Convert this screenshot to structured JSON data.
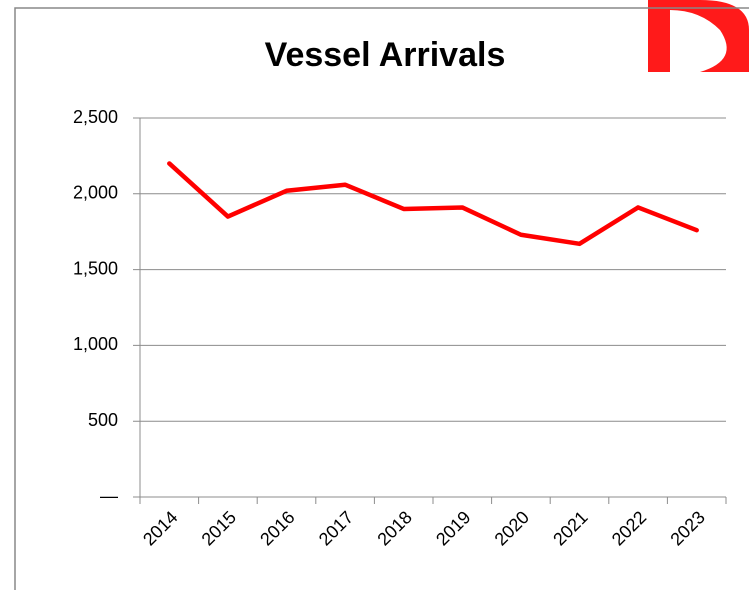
{
  "chart_data": {
    "type": "line",
    "title": "Vessel Arrivals",
    "categories": [
      "2014",
      "2015",
      "2016",
      "2017",
      "2018",
      "2019",
      "2020",
      "2021",
      "2022",
      "2023"
    ],
    "series": [
      {
        "name": "Vessel Arrivals",
        "color": "#ff0000",
        "values": [
          2200,
          1850,
          2020,
          2060,
          1900,
          1910,
          1730,
          1670,
          1910,
          1760
        ]
      }
    ],
    "ylim": [
      0,
      2500
    ],
    "yticks": [
      {
        "value": 0,
        "label": "—"
      },
      {
        "value": 500,
        "label": "500"
      },
      {
        "value": 1000,
        "label": "1,000"
      },
      {
        "value": 1500,
        "label": "1,500"
      },
      {
        "value": 2000,
        "label": "2,000"
      },
      {
        "value": 2500,
        "label": "2,500"
      }
    ],
    "grid": true
  }
}
